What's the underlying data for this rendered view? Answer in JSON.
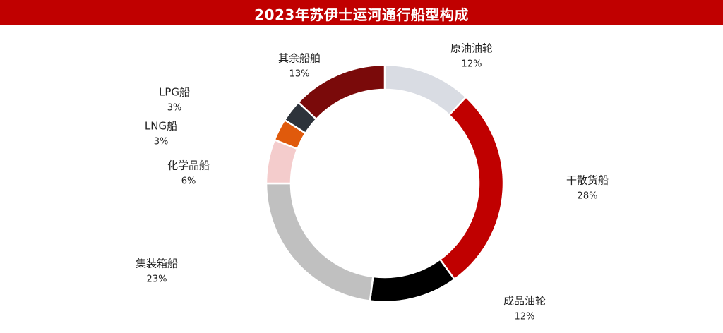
{
  "header": {
    "title": "2023年苏伊士运河通行船型构成"
  },
  "chart_data": {
    "type": "pie",
    "title": "2023年苏伊士运河通行船型构成",
    "donut": true,
    "legend": "none",
    "categories": [
      "原油油轮",
      "干散货船",
      "成品油轮",
      "集装箱船",
      "化学品船",
      "LNG船",
      "LPG船",
      "其余船舶"
    ],
    "values": [
      12,
      28,
      12,
      23,
      6,
      3,
      3,
      13
    ],
    "labels": [
      "12%",
      "28%",
      "12%",
      "23%",
      "6%",
      "3%",
      "3%",
      "13%"
    ],
    "colors": [
      "#d9dce3",
      "#c00000",
      "#000000",
      "#c0c0c0",
      "#f4cccc",
      "#e05a0c",
      "#2d333b",
      "#7a0a0a"
    ]
  }
}
